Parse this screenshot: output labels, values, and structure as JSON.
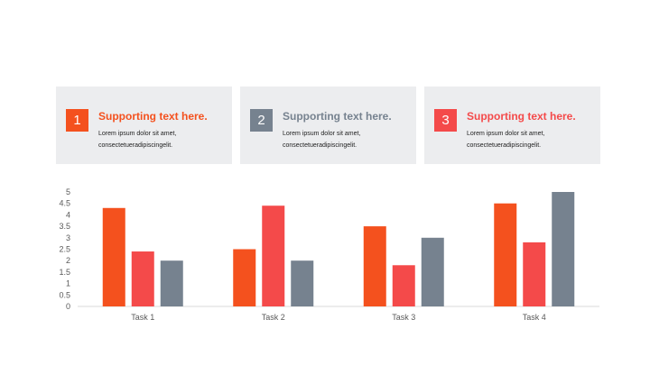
{
  "cards": [
    {
      "number": "1",
      "title": "Supporting text here.",
      "body_line1": "Lorem ipsum  dolor sit amet,",
      "body_line2": "consectetueradipiscingelit.",
      "badge_color": "#f4511e",
      "title_color": "#f4511e"
    },
    {
      "number": "2",
      "title": "Supporting text here.",
      "body_line1": "Lorem ipsum  dolor sit amet,",
      "body_line2": "consectetueradipiscingelit.",
      "badge_color": "#76828f",
      "title_color": "#76828f"
    },
    {
      "number": "3",
      "title": "Supporting text here.",
      "body_line1": "Lorem ipsum  dolor sit amet,",
      "body_line2": "consectetueradipiscingelit.",
      "badge_color": "#f44a4a",
      "title_color": "#f44a4a"
    }
  ],
  "chart_data": {
    "type": "bar",
    "categories": [
      "Task 1",
      "Task 2",
      "Task 3",
      "Task 4"
    ],
    "series": [
      {
        "values": [
          4.3,
          2.5,
          3.5,
          4.5
        ],
        "color": "#f4511e"
      },
      {
        "values": [
          2.4,
          4.4,
          1.8,
          2.8
        ],
        "color": "#f44a4a"
      },
      {
        "values": [
          2.0,
          2.0,
          3.0,
          5.0
        ],
        "color": "#76828f"
      }
    ],
    "ylim": [
      0,
      5
    ],
    "yticks": [
      "0",
      "0.5",
      "1",
      "1.5",
      "2",
      "2.5",
      "3",
      "3.5",
      "4",
      "4.5",
      "5"
    ],
    "grid": false,
    "legend": "none"
  }
}
